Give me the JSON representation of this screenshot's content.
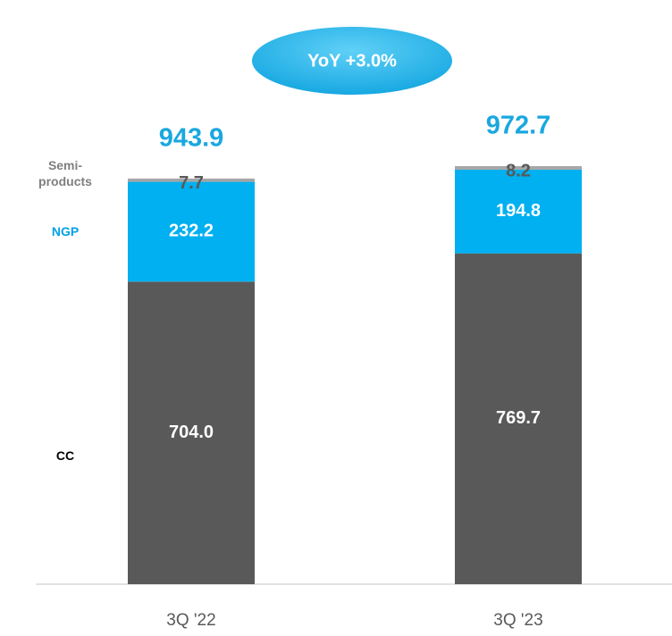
{
  "chart_data": {
    "type": "stacked_bar",
    "annotation": "YoY +3.0%",
    "categories": [
      "3Q '22",
      "3Q '23"
    ],
    "series": [
      {
        "name": "CC",
        "color": "#595959",
        "label_color": "#000000",
        "values": [
          704.0,
          769.7
        ],
        "value_labels": [
          "704.0",
          "769.7"
        ]
      },
      {
        "name": "NGP",
        "color": "#00b0f0",
        "label_color": "#00a0e6",
        "values": [
          232.2,
          194.8
        ]
      },
      {
        "name": "Semi-products",
        "color": "#a6a6a6",
        "label_color": "#7f7f7f",
        "values": [
          7.7,
          8.2
        ]
      }
    ],
    "totals": [
      943.9,
      972.7
    ]
  }
}
